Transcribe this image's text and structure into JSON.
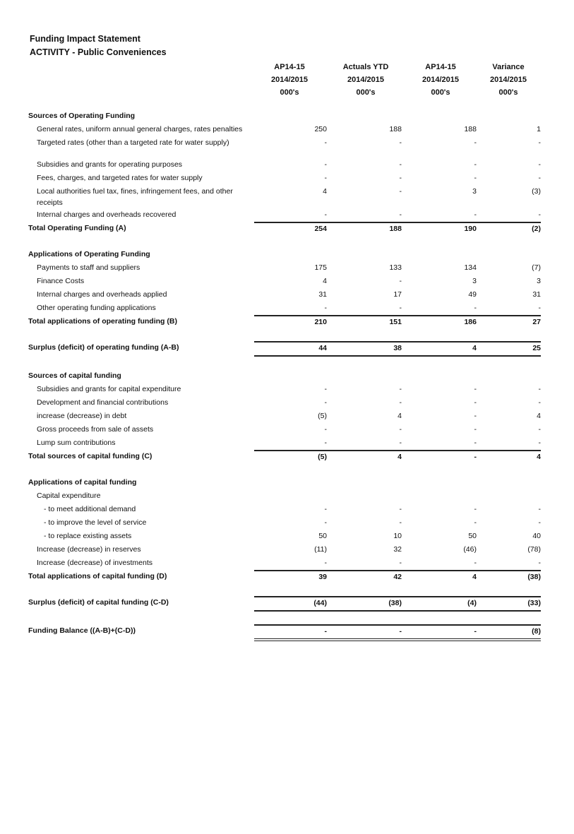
{
  "document": {
    "title": "Funding Impact Statement",
    "subtitle": "ACTIVITY - Public Conveniences",
    "columns": [
      {
        "line1": "AP14-15",
        "line2": "2014/2015",
        "line3": "000's"
      },
      {
        "line1": "Actuals YTD",
        "line2": "2014/2015",
        "line3": "000's"
      },
      {
        "line1": "AP14-15",
        "line2": "2014/2015",
        "line3": "000's"
      },
      {
        "line1": "Variance",
        "line2": "2014/2015",
        "line3": "000's"
      }
    ],
    "blocks": [
      {
        "kind": "section",
        "heading": "Sources of Operating Funding",
        "items": [
          {
            "label": "General rates, uniform annual general charges, rates penalties",
            "values": [
              "250",
              "188",
              "188",
              "1"
            ]
          },
          {
            "label": "Targeted rates (other than a targeted rate for water supply)",
            "values": [
              "-",
              "-",
              "-",
              "-"
            ],
            "spaceAfter": true
          },
          {
            "label": "Subsidies and grants for operating purposes",
            "values": [
              "-",
              "-",
              "-",
              "-"
            ]
          },
          {
            "label": "Fees, charges, and targeted rates for water supply",
            "values": [
              "-",
              "-",
              "-",
              "-"
            ]
          },
          {
            "label": "Local authorities fuel tax, fines, infringement fees, and other receipts",
            "values": [
              "4",
              "-",
              "3",
              "(3)"
            ]
          },
          {
            "label": "Internal charges and overheads recovered",
            "values": [
              "-",
              "-",
              "-",
              "-"
            ]
          }
        ],
        "total": {
          "label": "Total Operating Funding (A)",
          "values": [
            "254",
            "188",
            "190",
            "(2)"
          ]
        }
      },
      {
        "kind": "section",
        "heading": "Applications of Operating Funding",
        "items": [
          {
            "label": "Payments to staff and suppliers",
            "values": [
              "175",
              "133",
              "134",
              "(7)"
            ]
          },
          {
            "label": "Finance Costs",
            "values": [
              "4",
              "-",
              "3",
              "3"
            ]
          },
          {
            "label": "Internal charges and overheads applied",
            "values": [
              "31",
              "17",
              "49",
              "31"
            ]
          },
          {
            "label": "Other operating funding applications",
            "values": [
              "-",
              "-",
              "-",
              "-"
            ]
          }
        ],
        "total": {
          "label": "Total applications of operating funding (B)",
          "values": [
            "210",
            "151",
            "186",
            "27"
          ]
        }
      },
      {
        "kind": "summary",
        "label": "Surplus (deficit) of operating funding (A-B)",
        "values": [
          "44",
          "38",
          "4",
          "25"
        ]
      },
      {
        "kind": "section",
        "heading": "Sources of capital funding",
        "items": [
          {
            "label": "Subsidies and grants for capital expenditure",
            "values": [
              "-",
              "-",
              "-",
              "-"
            ]
          },
          {
            "label": "Development and financial contributions",
            "values": [
              "-",
              "-",
              "-",
              "-"
            ]
          },
          {
            "label": "increase (decrease) in debt",
            "values": [
              "(5)",
              "4",
              "-",
              "4"
            ]
          },
          {
            "label": "Gross proceeds from sale of assets",
            "values": [
              "-",
              "-",
              "-",
              "-"
            ]
          },
          {
            "label": "Lump sum contributions",
            "values": [
              "-",
              "-",
              "-",
              "-"
            ]
          }
        ],
        "total": {
          "label": "Total sources of capital funding (C)",
          "values": [
            "(5)",
            "4",
            "-",
            "4"
          ]
        }
      },
      {
        "kind": "section",
        "heading": "Applications of capital funding",
        "items": [
          {
            "label": "Capital expenditure",
            "values": [
              "",
              "",
              "",
              ""
            ]
          },
          {
            "label": "- to meet additional demand",
            "values": [
              "-",
              "-",
              "-",
              "-"
            ],
            "sub": true
          },
          {
            "label": "- to improve the level of service",
            "values": [
              "-",
              "-",
              "-",
              "-"
            ],
            "sub": true
          },
          {
            "label": "- to replace existing assets",
            "values": [
              "50",
              "10",
              "50",
              "40"
            ],
            "sub": true
          },
          {
            "label": "Increase (decrease) in reserves",
            "values": [
              "(11)",
              "32",
              "(46)",
              "(78)"
            ]
          },
          {
            "label": "Increase (decrease) of investments",
            "values": [
              "-",
              "-",
              "-",
              "-"
            ]
          }
        ],
        "total": {
          "label": "Total applications of capital funding (D)",
          "values": [
            "39",
            "42",
            "4",
            "(38)"
          ]
        }
      },
      {
        "kind": "summary",
        "label": "Surplus (deficit) of capital funding (C-D)",
        "values": [
          "(44)",
          "(38)",
          "(4)",
          "(33)"
        ]
      },
      {
        "kind": "summary",
        "double": true,
        "label": "Funding Balance ((A-B)+(C-D))",
        "values": [
          "-",
          "-",
          "-",
          "(8)"
        ]
      }
    ]
  }
}
